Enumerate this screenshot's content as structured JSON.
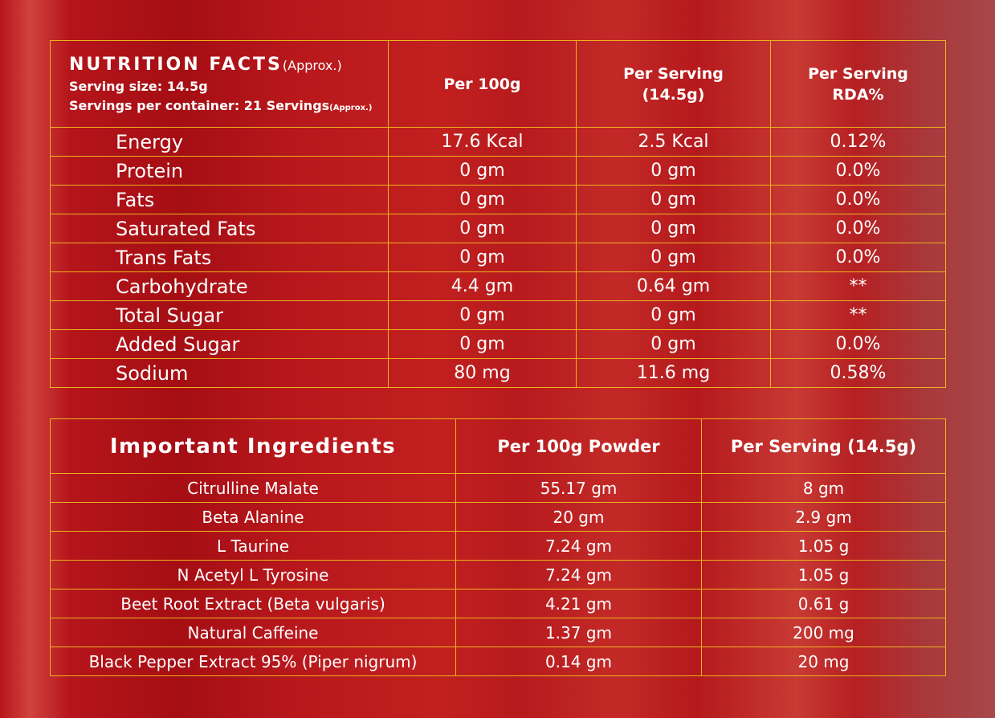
{
  "nutrition_facts": {
    "title": "NUTRITION FACTS",
    "title_note": "(Approx.)",
    "serving_size": "Serving size: 14.5g",
    "servings_per_container": "Servings per container: 21 Servings",
    "servings_note": "(Approx.)",
    "columns": {
      "per_100g": "Per 100g",
      "per_serving_line1": "Per Serving",
      "per_serving_line2": "(14.5g)",
      "rda_line1": "Per Serving",
      "rda_line2": "RDA%"
    },
    "rows": [
      {
        "nutrient": "Energy",
        "per_100g": "17.6 Kcal",
        "per_serving": "2.5 Kcal",
        "rda": "0.12%"
      },
      {
        "nutrient": "Protein",
        "per_100g": "0 gm",
        "per_serving": "0 gm",
        "rda": "0.0%"
      },
      {
        "nutrient": "Fats",
        "per_100g": "0 gm",
        "per_serving": "0 gm",
        "rda": "0.0%"
      },
      {
        "nutrient": "Saturated Fats",
        "per_100g": "0 gm",
        "per_serving": "0 gm",
        "rda": "0.0%"
      },
      {
        "nutrient": "Trans Fats",
        "per_100g": "0 gm",
        "per_serving": "0 gm",
        "rda": "0.0%"
      },
      {
        "nutrient": "Carbohydrate",
        "per_100g": "4.4 gm",
        "per_serving": "0.64 gm",
        "rda": "**"
      },
      {
        "nutrient": "Total Sugar",
        "per_100g": "0 gm",
        "per_serving": "0 gm",
        "rda": "**"
      },
      {
        "nutrient": "Added Sugar",
        "per_100g": "0 gm",
        "per_serving": "0 gm",
        "rda": "0.0%"
      },
      {
        "nutrient": "Sodium",
        "per_100g": "80 mg",
        "per_serving": "11.6 mg",
        "rda": "0.58%"
      }
    ]
  },
  "ingredients": {
    "title": "Important Ingredients",
    "columns": {
      "per_100g": "Per 100g Powder",
      "per_serving": "Per Serving (14.5g)"
    },
    "rows": [
      {
        "name": "Citrulline Malate",
        "per_100g": "55.17 gm",
        "per_serving": "8 gm"
      },
      {
        "name": "Beta Alanine",
        "per_100g": "20 gm",
        "per_serving": "2.9 gm"
      },
      {
        "name": "L Taurine",
        "per_100g": "7.24 gm",
        "per_serving": "1.05 g"
      },
      {
        "name": "N Acetyl L Tyrosine",
        "per_100g": "7.24 gm",
        "per_serving": "1.05 g"
      },
      {
        "name": "Beet Root Extract (Beta vulgaris)",
        "per_100g": "4.21 gm",
        "per_serving": "0.61 g"
      },
      {
        "name": "Natural Caffeine",
        "per_100g": "1.37 gm",
        "per_serving": "200 mg"
      },
      {
        "name": "Black Pepper Extract 95% (Piper nigrum)",
        "per_100g": "0.14 gm",
        "per_serving": "20 mg"
      }
    ]
  },
  "colors": {
    "border": "#ebb51e",
    "background": "#b5151a",
    "text": "#ffffff"
  }
}
